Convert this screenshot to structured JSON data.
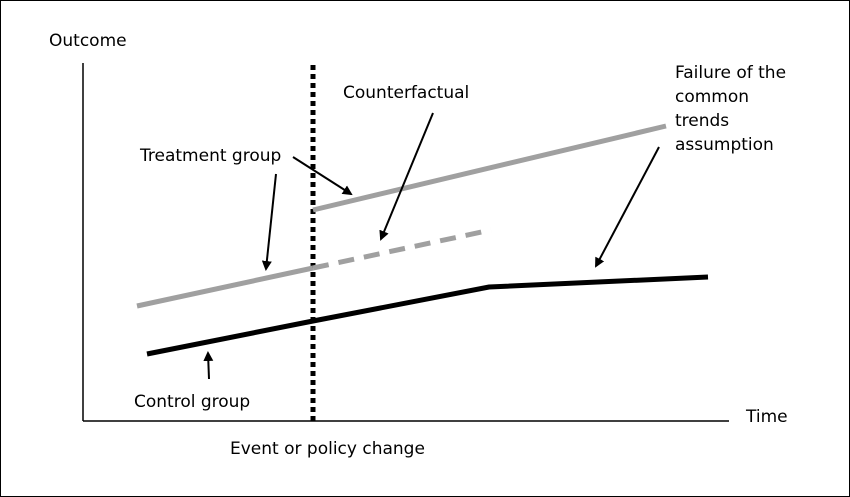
{
  "diagram": {
    "y_axis_label": "Outcome",
    "x_axis_label": "Time",
    "event_label": "Event or policy change",
    "labels": {
      "treatment_group": "Treatment group",
      "counterfactual": "Counterfactual",
      "control_group": "Control group",
      "failure_assumption": "Failure of the common trends assumption"
    },
    "colors": {
      "axis": "#000000",
      "treatment": "#a0a0a0",
      "counterfactual": "#a0a0a0",
      "control": "#000000",
      "event_line": "#000000",
      "arrows": "#000000"
    }
  }
}
